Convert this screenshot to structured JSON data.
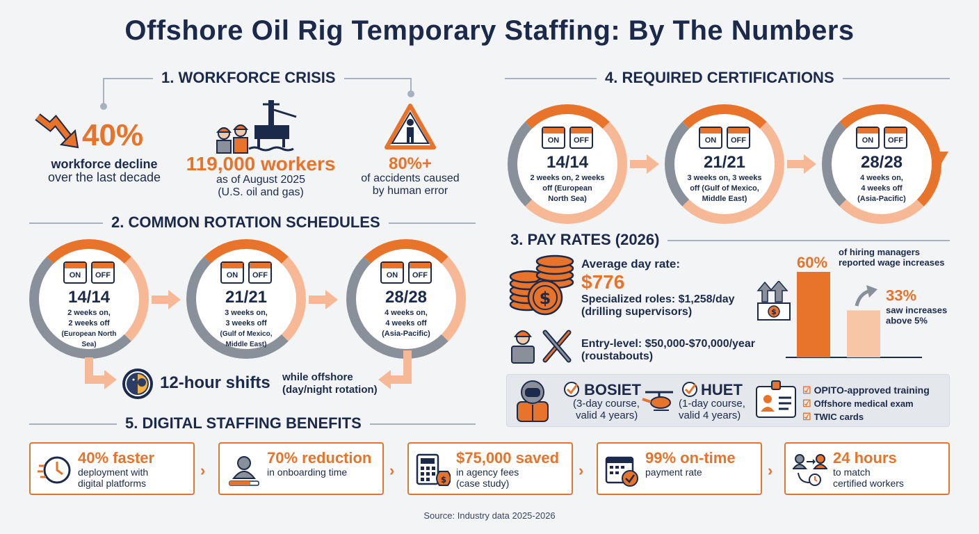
{
  "title": "Offshore Oil Rig Temporary Staffing: By The Numbers",
  "sec1": {
    "heading": "1. WORKFORCE CRISIS",
    "stat1_value": "40%",
    "stat1_label_1": "workforce decline",
    "stat1_label_2": "over the last decade",
    "stat2_value": "119,000 workers",
    "stat2_label_1": "as of August 2025",
    "stat2_label_2": "(U.S. oil and gas)",
    "stat3_value": "80%+",
    "stat3_label_1": "of accidents caused",
    "stat3_label_2": "by human error"
  },
  "sec2": {
    "heading": "2. COMMON ROTATION SCHEDULES",
    "rotations": [
      {
        "on": "ON",
        "off": "OFF",
        "ratio": "14/14",
        "l1": "2 weeks on,",
        "l2": "2 weeks off",
        "l3": "(European North",
        "l4": "Sea)"
      },
      {
        "on": "ON",
        "off": "OFF",
        "ratio": "21/21",
        "l1": "3 weeks on,",
        "l2": "3 weeks off",
        "l3": "(Gulf of Mexico,",
        "l4": "Middle East)"
      },
      {
        "on": "ON",
        "off": "OFF",
        "ratio": "28/28",
        "l1": "4 weeks on,",
        "l2": "4 weeks off",
        "l3": "(Asia-Pacific)",
        "l4": ""
      }
    ],
    "shift_title": "12-hour shifts",
    "shift_l1": "while offshore",
    "shift_l2": "(day/night rotation)"
  },
  "sec4": {
    "heading": "4. REQUIRED CERTIFICATIONS",
    "rotations": [
      {
        "on": "ON",
        "off": "OFF",
        "ratio": "14/14",
        "l1": "2 weeks on, 2 weeks",
        "l2": "off (European",
        "l3": "North Sea)"
      },
      {
        "on": "ON",
        "off": "OFF",
        "ratio": "21/21",
        "l1": "3 weeks on, 3 weeks",
        "l2": "off (Gulf of Mexico,",
        "l3": "Middle East)"
      },
      {
        "on": "ON",
        "off": "OFF",
        "ratio": "28/28",
        "l1": "4 weeks on,",
        "l2": "4 weeks off",
        "l3": "(Asia-Pacific)"
      }
    ],
    "bosiet_title": "BOSIET",
    "bosiet_l1": "(3-day course,",
    "bosiet_l2": "valid 4 years)",
    "huet_title": "HUET",
    "huet_l1": "(1-day course,",
    "huet_l2": "valid 4 years)",
    "checklist": [
      "OPITO-approved training",
      "Offshore medical exam",
      "TWIC cards"
    ]
  },
  "sec3": {
    "heading": "3. PAY RATES (2026)",
    "avg_label": "Average day rate:",
    "avg_value": "$776",
    "spec_1": "Specialized roles: $1,258/day",
    "spec_2": "(drilling supervisors)",
    "entry_1": "Entry-level: $50,000-$70,000/year",
    "entry_2": "(roustabouts)"
  },
  "chart_data": {
    "type": "bar",
    "categories": [
      "reported wage increases",
      "saw increases above 5%"
    ],
    "values": [
      60,
      33
    ],
    "labels": [
      "60%",
      "33%"
    ],
    "annotations": [
      {
        "l1": "of hiring managers",
        "l2": "reported wage increases"
      },
      {
        "l1": "saw increases",
        "l2": "above 5%"
      }
    ],
    "ylim": [
      0,
      100
    ],
    "colors": [
      "#e8732a",
      "#f7c6a6"
    ]
  },
  "sec5": {
    "heading": "5. DIGITAL STAFFING BENEFITS",
    "items": [
      {
        "title": "40% faster",
        "l1": "deployment with",
        "l2": "digital platforms",
        "icon": "clock-icon"
      },
      {
        "title": "70% reduction",
        "l1": "in onboarding time",
        "l2": "",
        "icon": "user-progress-icon"
      },
      {
        "title": "$75,000 saved",
        "l1": "in agency fees",
        "l2": "(case study)",
        "icon": "calculator-icon"
      },
      {
        "title": "99% on-time",
        "l1": "payment rate",
        "l2": "",
        "icon": "calendar-check-icon"
      },
      {
        "title": "24 hours",
        "l1": "to match",
        "l2": "certified workers",
        "icon": "match-users-icon"
      }
    ]
  },
  "source": "Source: Industry data 2025-2026",
  "colors": {
    "orange": "#e8732a",
    "navy": "#1b2a4a",
    "peach": "#f7b896",
    "gray": "#8a909a"
  }
}
